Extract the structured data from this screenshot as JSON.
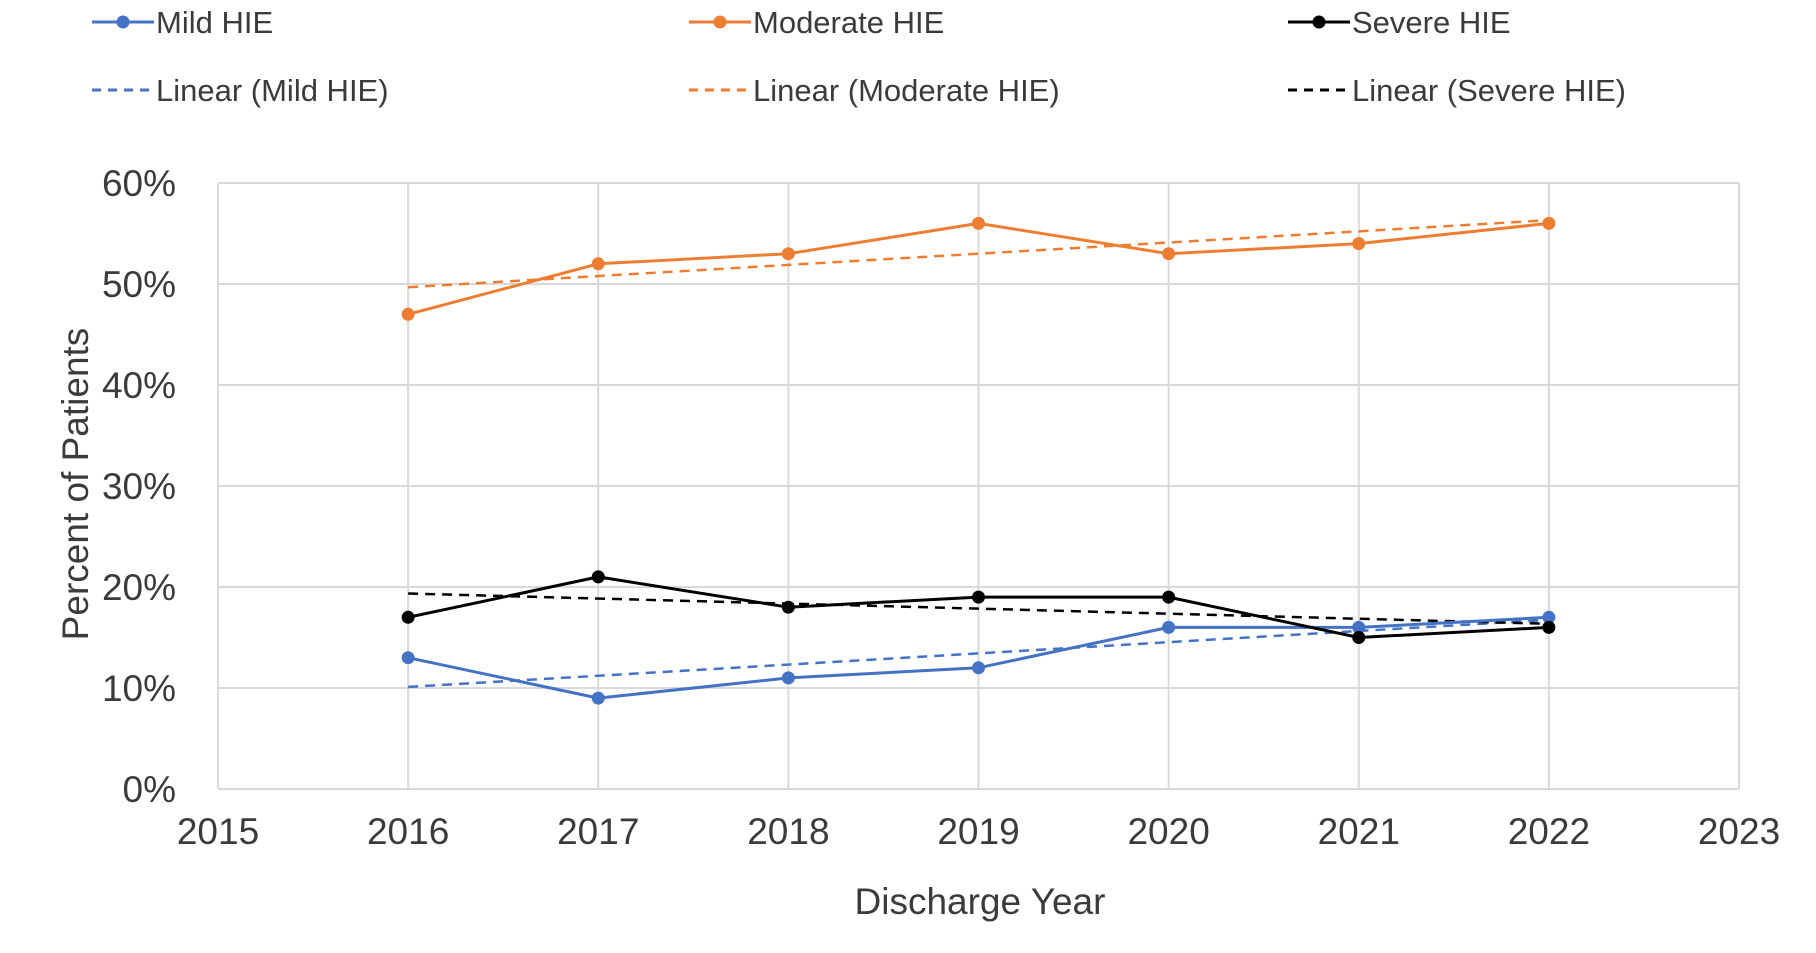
{
  "chart_data": {
    "type": "line",
    "xlabel": "Discharge Year",
    "ylabel": "Percent of Patients",
    "xlim": [
      2015,
      2023
    ],
    "ylim": [
      0,
      60
    ],
    "x_ticks": [
      "2015",
      "2016",
      "2017",
      "2018",
      "2019",
      "2020",
      "2021",
      "2022",
      "2023"
    ],
    "y_ticks": [
      "0%",
      "10%",
      "20%",
      "30%",
      "40%",
      "50%",
      "60%"
    ],
    "grid": true,
    "legend_position": "top",
    "x": [
      2016,
      2017,
      2018,
      2019,
      2020,
      2021,
      2022
    ],
    "series": [
      {
        "name": "Mild HIE",
        "color": "#4472c4",
        "values": [
          13,
          9,
          11,
          12,
          16,
          16,
          17
        ]
      },
      {
        "name": "Moderate HIE",
        "color": "#ed7d31",
        "values": [
          47,
          52,
          53,
          56,
          53,
          54,
          56
        ]
      },
      {
        "name": "Severe HIE",
        "color": "#000000",
        "values": [
          17,
          21,
          18,
          19,
          19,
          15,
          16
        ]
      }
    ],
    "trendlines": [
      {
        "name": "Linear (Mild HIE)",
        "color": "#4472c4",
        "type": "linear"
      },
      {
        "name": "Linear (Moderate HIE)",
        "color": "#ed7d31",
        "type": "linear"
      },
      {
        "name": "Linear (Severe HIE)",
        "color": "#000000",
        "type": "linear"
      }
    ]
  }
}
